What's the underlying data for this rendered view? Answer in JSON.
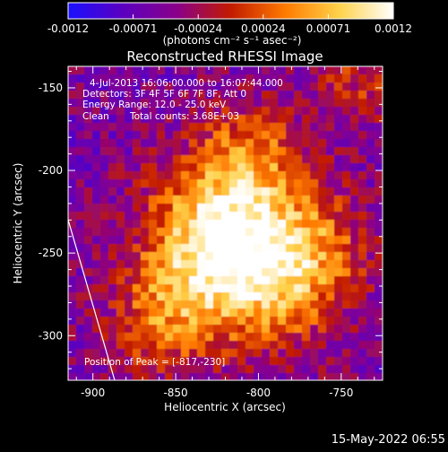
{
  "colorbar": {
    "tick_labels": [
      "-0.0012",
      "-0.00071",
      "-0.00024",
      "0.00024",
      "0.00071",
      "0.0012"
    ],
    "units_label": "(photons cm⁻² s⁻¹ asec⁻²)",
    "stops": [
      "#1a10ff",
      "#5a00c0",
      "#8a008a",
      "#c21b00",
      "#ff7a00",
      "#ffd24a",
      "#ffffff"
    ]
  },
  "image": {
    "title": "Reconstructed RHESSI Image",
    "time_range": "4-Jul-2013 16:06:00.000 to 16:07:44.000",
    "detectors": "Detectors: 3F 4F 5F 6F 7F 8F, Att 0",
    "energy_range": "Energy Range: 12.0 - 25.0 keV",
    "method": "Clean",
    "total_counts": "Total counts: 3.68E+03",
    "peak_label": "Position of Peak = [-817,-230]",
    "peak": {
      "x": -817,
      "y": -230
    }
  },
  "axes": {
    "xlabel": "Heliocentric X (arcsec)",
    "ylabel": "Heliocentric Y (arcsec)",
    "xlim": [
      -915,
      -725
    ],
    "ylim": [
      -327,
      -137
    ],
    "xticks": [
      {
        "value": -900,
        "label": "-900"
      },
      {
        "value": -850,
        "label": "-850"
      },
      {
        "value": -800,
        "label": "-800"
      },
      {
        "value": -750,
        "label": "-750"
      }
    ],
    "yticks": [
      {
        "value": -150,
        "label": "-150"
      },
      {
        "value": -200,
        "label": "-200"
      },
      {
        "value": -250,
        "label": "-250"
      },
      {
        "value": -300,
        "label": "-300"
      }
    ]
  },
  "footer": {
    "date": "15-May-2022 06:55"
  }
}
